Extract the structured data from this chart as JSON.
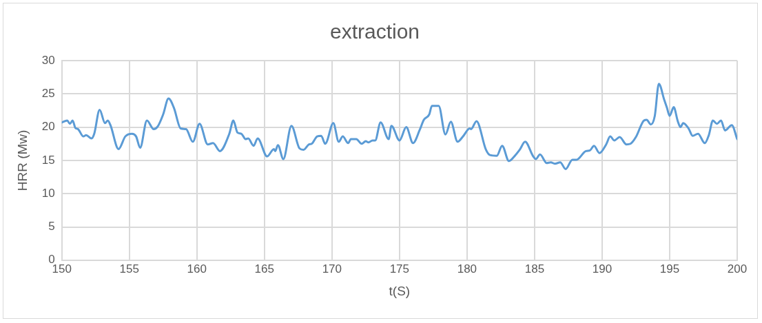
{
  "chart_data": {
    "type": "line",
    "title": "extraction",
    "xlabel": "t(S)",
    "ylabel": "HRR (Mw)",
    "xlim": [
      150,
      200
    ],
    "xticks": [
      150,
      155,
      160,
      165,
      170,
      175,
      180,
      185,
      190,
      195,
      200
    ],
    "ylim": [
      0,
      30
    ],
    "yticks": [
      0,
      5,
      10,
      15,
      20,
      25,
      30
    ],
    "grid": true,
    "marker": "none",
    "line_style": "solid",
    "series": [
      {
        "color": "#5b9bd5",
        "x": [
          150,
          150.4,
          150.6,
          150.8,
          151.0,
          151.2,
          151.6,
          151.8,
          152.2,
          152.4,
          152.8,
          153.2,
          153.4,
          153.6,
          154.2,
          154.7,
          155.2,
          155.5,
          155.8,
          156.3,
          156.8,
          157.1,
          157.5,
          157.9,
          158.3,
          158.8,
          159.2,
          159.7,
          160.2,
          160.8,
          161.2,
          161.7,
          162.4,
          162.7,
          163.0,
          163.3,
          163.6,
          163.8,
          164.2,
          164.5,
          165.2,
          165.7,
          165.8,
          166.0,
          166.4,
          167.0,
          167.6,
          167.9,
          168.3,
          168.5,
          168.9,
          169.2,
          169.5,
          170.1,
          170.5,
          170.8,
          171.2,
          171.4,
          171.8,
          172.2,
          172.5,
          172.7,
          173.0,
          173.2,
          173.6,
          174.2,
          174.4,
          175.0,
          175.5,
          176.0,
          176.5,
          176.8,
          177.2,
          177.4,
          177.9,
          178.4,
          178.8,
          179.3,
          179.7,
          180.2,
          180.3,
          180.7,
          181.4,
          181.7,
          182.2,
          182.6,
          183.1,
          183.5,
          183.9,
          184.3,
          184.9,
          185.1,
          185.4,
          185.9,
          186.2,
          186.5,
          186.9,
          187.3,
          187.8,
          188.1,
          188.8,
          189.1,
          189.4,
          189.8,
          190.3,
          190.6,
          190.9,
          191.3,
          191.8,
          192.1,
          192.5,
          193.1,
          193.3,
          193.6,
          193.9,
          194.2,
          194.6,
          194.8,
          195.0,
          195.3,
          195.6,
          195.8,
          196.0,
          196.4,
          196.7,
          197.1,
          197.6,
          197.9,
          198.2,
          198.5,
          198.8,
          199.1,
          199.6,
          200.0
        ],
        "values": [
          20.7,
          21.0,
          20.5,
          21.0,
          19.9,
          19.7,
          18.6,
          18.8,
          18.3,
          19.0,
          22.6,
          20.6,
          21.0,
          20.3,
          16.7,
          18.6,
          19.0,
          18.6,
          16.9,
          21.0,
          19.7,
          20.1,
          21.9,
          24.3,
          22.9,
          19.8,
          19.7,
          17.8,
          20.5,
          17.4,
          17.6,
          16.4,
          19.0,
          21.0,
          19.2,
          19.0,
          18.2,
          18.3,
          17.2,
          18.3,
          15.6,
          16.7,
          16.4,
          17.3,
          15.2,
          20.2,
          16.8,
          16.6,
          17.4,
          17.5,
          18.6,
          18.7,
          17.5,
          20.6,
          17.8,
          18.6,
          17.6,
          18.2,
          18.2,
          17.5,
          17.9,
          17.7,
          18.0,
          18.0,
          20.7,
          18.2,
          20.2,
          18.0,
          20.0,
          17.6,
          19.6,
          21.1,
          21.9,
          23.2,
          23.2,
          18.9,
          20.8,
          17.8,
          18.6,
          19.8,
          19.7,
          20.9,
          16.6,
          15.8,
          15.7,
          17.2,
          14.9,
          15.6,
          16.6,
          17.8,
          15.6,
          15.2,
          15.9,
          14.6,
          14.7,
          14.5,
          14.7,
          13.7,
          15.1,
          15.1,
          16.4,
          16.5,
          17.2,
          16.1,
          17.4,
          18.6,
          18.0,
          18.5,
          17.4,
          17.5,
          18.5,
          21.0,
          21.1,
          20.4,
          21.7,
          26.5,
          24.1,
          22.9,
          21.7,
          23.0,
          20.9,
          20.0,
          20.6,
          19.8,
          18.7,
          19.0,
          17.6,
          18.8,
          21.0,
          20.5,
          21.0,
          19.5,
          20.3,
          18.2
        ]
      }
    ]
  }
}
